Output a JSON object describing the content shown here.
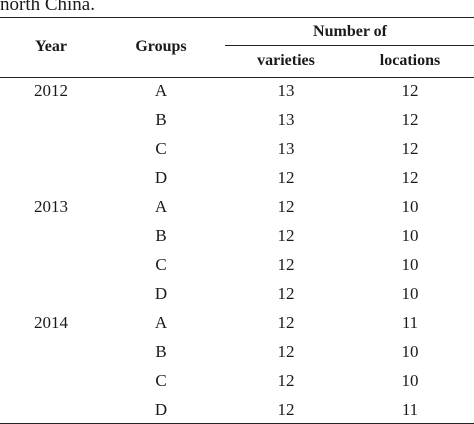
{
  "caption": "north China.",
  "headers": {
    "year": "Year",
    "groups": "Groups",
    "number_of": "Number of",
    "varieties": "varieties",
    "locations": "locations"
  },
  "rows": [
    {
      "year": "2012",
      "group": "A",
      "varieties": "13",
      "locations": "12"
    },
    {
      "year": "",
      "group": "B",
      "varieties": "13",
      "locations": "12"
    },
    {
      "year": "",
      "group": "C",
      "varieties": "13",
      "locations": "12"
    },
    {
      "year": "",
      "group": "D",
      "varieties": "12",
      "locations": "12"
    },
    {
      "year": "2013",
      "group": "A",
      "varieties": "12",
      "locations": "10"
    },
    {
      "year": "",
      "group": "B",
      "varieties": "12",
      "locations": "10"
    },
    {
      "year": "",
      "group": "C",
      "varieties": "12",
      "locations": "10"
    },
    {
      "year": "",
      "group": "D",
      "varieties": "12",
      "locations": "10"
    },
    {
      "year": "2014",
      "group": "A",
      "varieties": "12",
      "locations": "11"
    },
    {
      "year": "",
      "group": "B",
      "varieties": "12",
      "locations": "10"
    },
    {
      "year": "",
      "group": "C",
      "varieties": "12",
      "locations": "10"
    },
    {
      "year": "",
      "group": "D",
      "varieties": "12",
      "locations": "11"
    }
  ]
}
